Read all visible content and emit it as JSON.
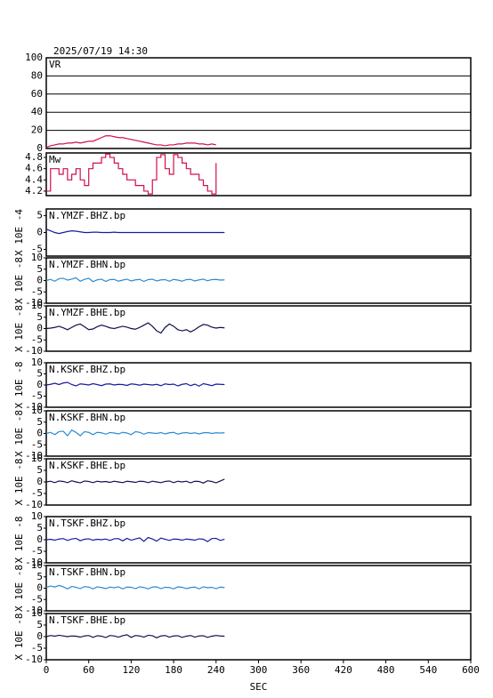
{
  "chart_data": [
    {
      "type": "line",
      "title": "2025/07/19 14:30",
      "label": "VR",
      "color": "#d0104a",
      "grid": true,
      "xlim": [
        0,
        600
      ],
      "ylim": [
        0,
        100
      ],
      "yticks": [
        0,
        20,
        40,
        60,
        80,
        100
      ],
      "x": [
        0,
        6,
        12,
        18,
        24,
        30,
        36,
        42,
        48,
        54,
        60,
        66,
        72,
        78,
        84,
        90,
        96,
        102,
        108,
        114,
        120,
        126,
        132,
        138,
        144,
        150,
        156,
        162,
        168,
        174,
        180,
        186,
        192,
        198,
        204,
        210,
        216,
        222,
        228,
        234,
        240
      ],
      "values": [
        1,
        3,
        4,
        5,
        5,
        6,
        6,
        7,
        6,
        7,
        8,
        8,
        10,
        12,
        14,
        14,
        13,
        12,
        12,
        11,
        10,
        9,
        8,
        7,
        6,
        5,
        4,
        4,
        3,
        4,
        4,
        5,
        5,
        6,
        6,
        6,
        5,
        5,
        4,
        5,
        4
      ]
    },
    {
      "type": "line",
      "label": "Mw",
      "color": "#d0104a",
      "step": true,
      "xlim": [
        0,
        600
      ],
      "ylim": [
        4.12,
        4.88
      ],
      "yticks": [
        4.2,
        4.4,
        4.6,
        4.8
      ],
      "x": [
        0,
        6,
        12,
        18,
        24,
        30,
        36,
        42,
        48,
        54,
        60,
        66,
        72,
        78,
        84,
        90,
        96,
        102,
        108,
        114,
        120,
        126,
        132,
        138,
        144,
        150,
        156,
        162,
        168,
        174,
        180,
        186,
        192,
        198,
        204,
        210,
        216,
        222,
        228,
        234,
        240
      ],
      "values": [
        4.2,
        4.6,
        4.6,
        4.5,
        4.6,
        4.4,
        4.5,
        4.6,
        4.4,
        4.3,
        4.6,
        4.7,
        4.7,
        4.8,
        4.86,
        4.8,
        4.7,
        4.6,
        4.5,
        4.4,
        4.4,
        4.3,
        4.3,
        4.2,
        4.15,
        4.4,
        4.8,
        4.85,
        4.6,
        4.5,
        4.85,
        4.8,
        4.7,
        4.6,
        4.5,
        4.5,
        4.4,
        4.3,
        4.2,
        4.15,
        4.7
      ]
    },
    {
      "type": "line",
      "label": "N.YMZF.BHZ.bp",
      "ylabel": "X 10E -4",
      "color": "#1a1a9e",
      "xlim": [
        0,
        600
      ],
      "ylim": [
        -7,
        7
      ],
      "yticks": [
        -5,
        0,
        5
      ],
      "x": [
        0,
        6,
        12,
        18,
        24,
        30,
        36,
        42,
        48,
        54,
        60,
        66,
        72,
        78,
        84,
        90,
        96,
        102,
        108,
        114,
        120,
        126,
        132,
        138,
        144,
        150,
        156,
        162,
        168,
        174,
        180,
        186,
        192,
        198,
        204,
        210,
        216,
        222,
        228,
        234,
        240,
        246,
        252
      ],
      "values": [
        1,
        0.5,
        0,
        -0.3,
        0,
        0.3,
        0.5,
        0.4,
        0.2,
        0,
        0,
        0.1,
        0.1,
        0,
        0,
        0,
        0.1,
        0,
        0,
        0,
        0,
        0,
        0,
        0,
        0,
        0,
        0,
        0,
        0,
        0,
        0,
        0,
        0,
        0,
        0,
        0,
        0,
        0,
        0,
        0,
        0,
        0,
        0
      ]
    },
    {
      "type": "line",
      "label": "N.YMZF.BHN.bp",
      "ylabel": "X 10E -8",
      "color": "#2a8ad0",
      "xlim": [
        0,
        600
      ],
      "ylim": [
        -10,
        10
      ],
      "yticks": [
        -10,
        -5,
        0,
        5,
        10
      ],
      "x": [
        0,
        6,
        12,
        18,
        24,
        30,
        36,
        42,
        48,
        54,
        60,
        66,
        72,
        78,
        84,
        90,
        96,
        102,
        108,
        114,
        120,
        126,
        132,
        138,
        144,
        150,
        156,
        162,
        168,
        174,
        180,
        186,
        192,
        198,
        204,
        210,
        216,
        222,
        228,
        234,
        240,
        246,
        252
      ],
      "values": [
        0,
        0.5,
        -0.3,
        0.8,
        1,
        0.2,
        0.6,
        1.2,
        -0.3,
        0.5,
        1,
        -0.5,
        0.3,
        0.6,
        -0.4,
        0.4,
        0.5,
        -0.3,
        0.2,
        0.6,
        -0.2,
        0.3,
        0.5,
        -0.4,
        0.4,
        0.6,
        -0.2,
        0.3,
        0.4,
        -0.3,
        0.5,
        0.2,
        -0.3,
        0.4,
        0.5,
        -0.2,
        0.3,
        0.6,
        -0.1,
        0.4,
        0.5,
        0.2,
        0.3
      ]
    },
    {
      "type": "line",
      "label": "N.YMZF.BHE.bp",
      "ylabel": "X 10E -8",
      "color": "#101050",
      "xlim": [
        0,
        600
      ],
      "ylim": [
        -10,
        10
      ],
      "yticks": [
        -10,
        -5,
        0,
        5,
        10
      ],
      "x": [
        0,
        6,
        12,
        18,
        24,
        30,
        36,
        42,
        48,
        54,
        60,
        66,
        72,
        78,
        84,
        90,
        96,
        102,
        108,
        114,
        120,
        126,
        132,
        138,
        144,
        150,
        156,
        162,
        168,
        174,
        180,
        186,
        192,
        198,
        204,
        210,
        216,
        222,
        228,
        234,
        240,
        246,
        252
      ],
      "values": [
        0,
        0.2,
        0.5,
        1,
        0.3,
        -0.5,
        0.5,
        1.5,
        2,
        0.8,
        -0.5,
        -0.2,
        0.8,
        1.5,
        1,
        0.3,
        0,
        0.5,
        1,
        0.6,
        0,
        -0.3,
        0.5,
        1.5,
        2.5,
        1,
        -1,
        -2,
        0.5,
        2,
        1,
        -0.5,
        -1,
        -0.5,
        -1.5,
        -0.5,
        0.8,
        1.8,
        1.5,
        0.6,
        0.2,
        0.5,
        0.3
      ]
    },
    {
      "type": "line",
      "label": "N.KSKF.BHZ.bp",
      "ylabel": "X 10E -8",
      "color": "#1a1a9e",
      "xlim": [
        0,
        600
      ],
      "ylim": [
        -10,
        10
      ],
      "yticks": [
        -10,
        -5,
        0,
        5,
        10
      ],
      "x": [
        0,
        6,
        12,
        18,
        24,
        30,
        36,
        42,
        48,
        54,
        60,
        66,
        72,
        78,
        84,
        90,
        96,
        102,
        108,
        114,
        120,
        126,
        132,
        138,
        144,
        150,
        156,
        162,
        168,
        174,
        180,
        186,
        192,
        198,
        204,
        210,
        216,
        222,
        228,
        234,
        240,
        246,
        252
      ],
      "values": [
        0,
        0.3,
        0.8,
        0.2,
        0.9,
        1.2,
        0.2,
        -0.4,
        0.5,
        0.3,
        0,
        0.6,
        0.2,
        -0.3,
        0.4,
        0.5,
        0,
        0.3,
        0.2,
        -0.2,
        0.5,
        0.3,
        -0.1,
        0.4,
        0.2,
        0,
        0.3,
        -0.3,
        0.5,
        0.2,
        0.4,
        -0.4,
        0.3,
        0.6,
        -0.3,
        0.4,
        -0.5,
        0.6,
        0.2,
        -0.3,
        0.4,
        0.3,
        0.2
      ]
    },
    {
      "type": "line",
      "label": "N.KSKF.BHN.bp",
      "ylabel": "X 10E -8",
      "color": "#2a8ad0",
      "xlim": [
        0,
        600
      ],
      "ylim": [
        -10,
        10
      ],
      "yticks": [
        -10,
        -5,
        0,
        5,
        10
      ],
      "x": [
        0,
        6,
        12,
        18,
        24,
        30,
        36,
        42,
        48,
        54,
        60,
        66,
        72,
        78,
        84,
        90,
        96,
        102,
        108,
        114,
        120,
        126,
        132,
        138,
        144,
        150,
        156,
        162,
        168,
        174,
        180,
        186,
        192,
        198,
        204,
        210,
        216,
        222,
        228,
        234,
        240,
        246,
        252
      ],
      "values": [
        0,
        0.5,
        -0.5,
        0.8,
        1,
        -1,
        1.5,
        0.5,
        -1,
        0.8,
        0.5,
        -0.5,
        0.5,
        0.3,
        -0.3,
        0.4,
        0.2,
        -0.2,
        0.5,
        0.2,
        -0.5,
        0.8,
        0.5,
        -0.3,
        0.4,
        0.2,
        0,
        0.4,
        -0.2,
        0.3,
        0.5,
        -0.3,
        0.2,
        0.4,
        0,
        0.3,
        -0.2,
        0.3,
        0.4,
        0,
        0.3,
        0.2,
        0.3
      ]
    },
    {
      "type": "line",
      "label": "N.KSKF.BHE.bp",
      "ylabel": "X 10E -8",
      "color": "#101050",
      "xlim": [
        0,
        600
      ],
      "ylim": [
        -10,
        10
      ],
      "yticks": [
        -10,
        -5,
        0,
        5,
        10
      ],
      "x": [
        0,
        6,
        12,
        18,
        24,
        30,
        36,
        42,
        48,
        54,
        60,
        66,
        72,
        78,
        84,
        90,
        96,
        102,
        108,
        114,
        120,
        126,
        132,
        138,
        144,
        150,
        156,
        162,
        168,
        174,
        180,
        186,
        192,
        198,
        204,
        210,
        216,
        222,
        228,
        234,
        240,
        246,
        252
      ],
      "values": [
        0,
        0.3,
        -0.3,
        0.4,
        0.2,
        -0.3,
        0.5,
        0,
        -0.4,
        0.4,
        0.2,
        -0.3,
        0.3,
        0,
        0.2,
        -0.2,
        0.3,
        0,
        -0.3,
        0.3,
        0.1,
        -0.2,
        0.3,
        0.2,
        -0.3,
        0.3,
        0,
        -0.3,
        0.2,
        0.4,
        -0.3,
        0.3,
        0,
        0.3,
        -0.4,
        0.3,
        0.2,
        -0.5,
        0.5,
        0.2,
        -0.4,
        0.4,
        1.2
      ]
    },
    {
      "type": "line",
      "label": "N.TSKF.BHZ.bp",
      "ylabel": "X 10E -8",
      "color": "#1a1a9e",
      "xlim": [
        0,
        600
      ],
      "ylim": [
        -10,
        10
      ],
      "yticks": [
        -10,
        -5,
        0,
        5,
        10
      ],
      "x": [
        0,
        6,
        12,
        18,
        24,
        30,
        36,
        42,
        48,
        54,
        60,
        66,
        72,
        78,
        84,
        90,
        96,
        102,
        108,
        114,
        120,
        126,
        132,
        138,
        144,
        150,
        156,
        162,
        168,
        174,
        180,
        186,
        192,
        198,
        204,
        210,
        216,
        222,
        228,
        234,
        240,
        246,
        252
      ],
      "values": [
        0,
        0.2,
        -0.2,
        0.3,
        0.5,
        -0.3,
        0.3,
        0.6,
        -0.4,
        0.2,
        0.4,
        -0.2,
        0.2,
        0,
        0.3,
        -0.3,
        0.4,
        0.5,
        -0.5,
        0.6,
        -0.2,
        0.3,
        0.8,
        -0.7,
        1,
        0.3,
        -0.6,
        0.7,
        0.2,
        -0.3,
        0.3,
        0.2,
        -0.2,
        0.3,
        0.1,
        -0.2,
        0.4,
        0.2,
        -0.8,
        0.5,
        0.6,
        -0.3,
        0.2
      ]
    },
    {
      "type": "line",
      "label": "N.TSKF.BHN.bp",
      "ylabel": "X 10E -8",
      "color": "#2a8ad0",
      "xlim": [
        0,
        600
      ],
      "ylim": [
        -10,
        10
      ],
      "yticks": [
        -10,
        -5,
        0,
        5,
        10
      ],
      "x": [
        0,
        6,
        12,
        18,
        24,
        30,
        36,
        42,
        48,
        54,
        60,
        66,
        72,
        78,
        84,
        90,
        96,
        102,
        108,
        114,
        120,
        126,
        132,
        138,
        144,
        150,
        156,
        162,
        168,
        174,
        180,
        186,
        192,
        198,
        204,
        210,
        216,
        222,
        228,
        234,
        240,
        246,
        252
      ],
      "values": [
        0.3,
        1,
        0.5,
        1.2,
        0.6,
        -0.3,
        0.8,
        0.4,
        -0.2,
        0.7,
        0.5,
        -0.3,
        0.6,
        0.3,
        -0.2,
        0.5,
        0.2,
        0.6,
        -0.3,
        0.5,
        0.4,
        -0.2,
        0.6,
        0.3,
        -0.3,
        0.5,
        0.6,
        -0.2,
        0.4,
        0.3,
        -0.3,
        0.6,
        0.4,
        -0.2,
        0.3,
        0.5,
        -0.3,
        0.6,
        0.2,
        0.4,
        -0.2,
        0.5,
        0.3
      ]
    },
    {
      "type": "line",
      "label": "N.TSKF.BHE.bp",
      "ylabel": "X 10E -8",
      "color": "#101050",
      "xlim": [
        0,
        600
      ],
      "ylim": [
        -10,
        10
      ],
      "yticks": [
        -10,
        -5,
        0,
        5,
        10
      ],
      "xticks": [
        0,
        60,
        120,
        180,
        240,
        300,
        360,
        420,
        480,
        540,
        600
      ],
      "xlabel": "SEC",
      "x": [
        0,
        6,
        12,
        18,
        24,
        30,
        36,
        42,
        48,
        54,
        60,
        66,
        72,
        78,
        84,
        90,
        96,
        102,
        108,
        114,
        120,
        126,
        132,
        138,
        144,
        150,
        156,
        162,
        168,
        174,
        180,
        186,
        192,
        198,
        204,
        210,
        216,
        222,
        228,
        234,
        240,
        246,
        252
      ],
      "values": [
        0,
        0.5,
        0.2,
        0.6,
        0.3,
        0,
        0.3,
        0.2,
        -0.2,
        0.3,
        0.5,
        -0.3,
        0.4,
        0.2,
        -0.4,
        0.5,
        0.3,
        -0.2,
        0.4,
        0.8,
        -0.3,
        0.5,
        0.3,
        -0.2,
        0.6,
        0.4,
        -0.5,
        0.3,
        0.5,
        -0.2,
        0.3,
        0.4,
        -0.3,
        0.2,
        0.5,
        -0.2,
        0.3,
        0.4,
        -0.3,
        0.2,
        0.5,
        0.3,
        0.2
      ]
    }
  ]
}
